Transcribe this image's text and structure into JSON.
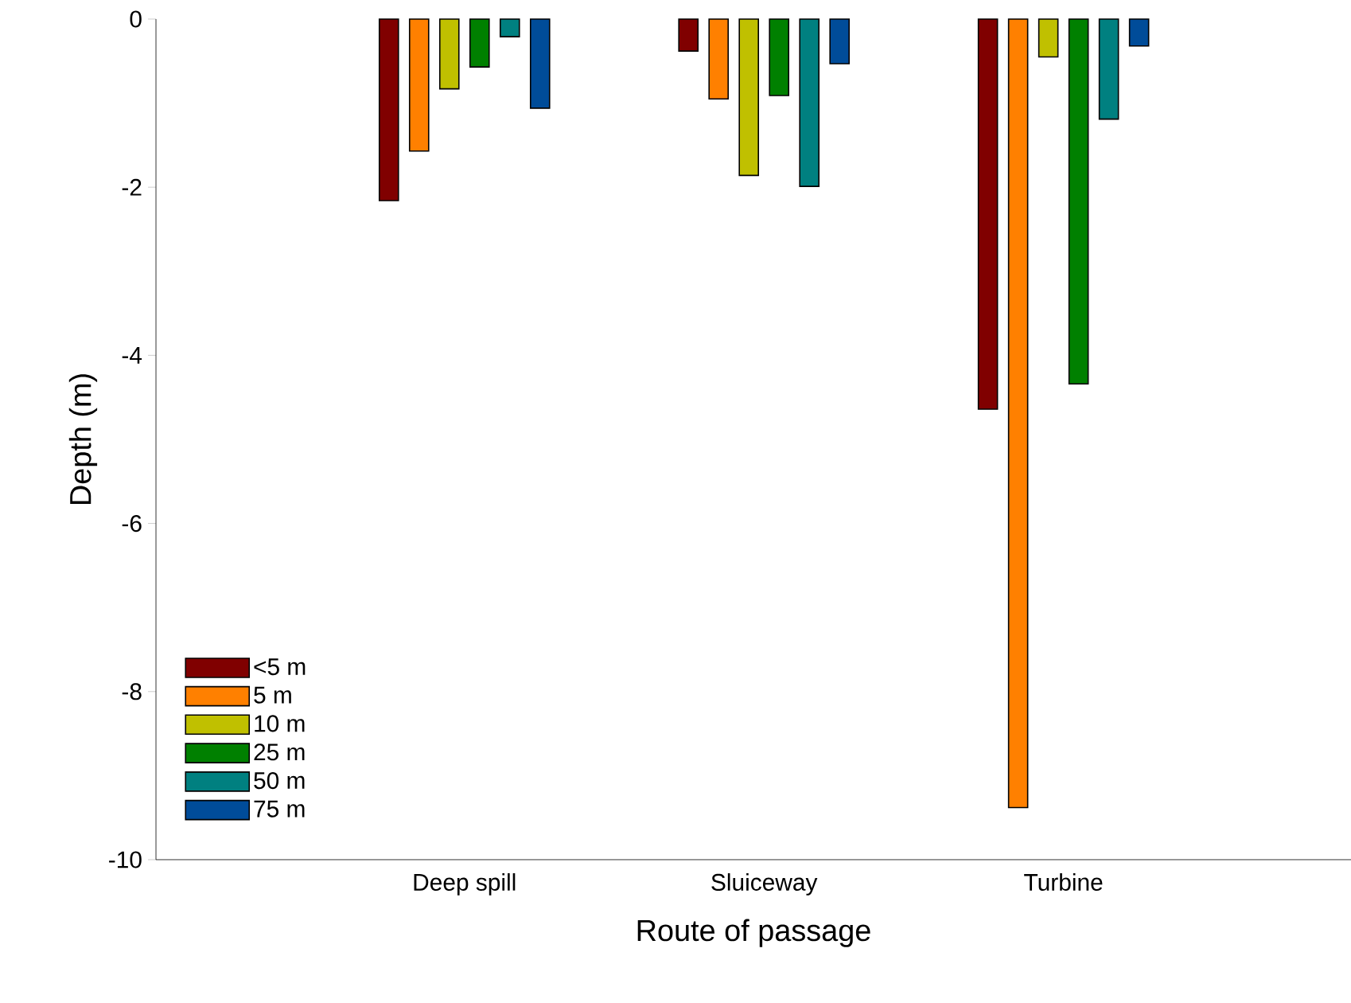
{
  "chart_data": {
    "type": "bar",
    "xlabel": "Route of passage",
    "ylabel": "Depth (m)",
    "categories": [
      "Deep spill",
      "Sluiceway",
      "Turbine"
    ],
    "series": [
      {
        "name": "<5 m",
        "color": "#800000",
        "values": [
          -2.16,
          -0.38,
          -4.64
        ]
      },
      {
        "name": "5 m",
        "color": "#ff8000",
        "values": [
          -1.57,
          -0.95,
          -9.38
        ]
      },
      {
        "name": "10 m",
        "color": "#c0c000",
        "values": [
          -0.83,
          -1.86,
          -0.45
        ]
      },
      {
        "name": "25 m",
        "color": "#008000",
        "values": [
          -0.57,
          -0.91,
          -4.34
        ]
      },
      {
        "name": "50 m",
        "color": "#008080",
        "values": [
          -0.21,
          -1.99,
          -1.19
        ]
      },
      {
        "name": "75 m",
        "color": "#004c99",
        "values": [
          -1.06,
          -0.53,
          -0.32
        ]
      }
    ],
    "ylim": [
      -10,
      0
    ],
    "yticks": [
      -10,
      -8,
      -6,
      -4,
      -2,
      0
    ],
    "legend": "bottom left",
    "grid": false
  }
}
